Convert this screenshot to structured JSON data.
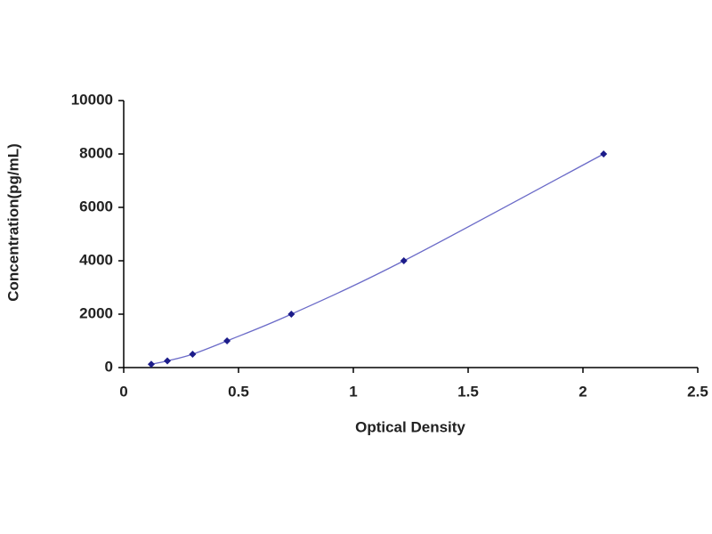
{
  "chart_data": {
    "type": "scatter",
    "x_label": "Optical Density",
    "y_label": "Concentration(pg/mL)",
    "series": [
      {
        "x": [
          0.12,
          0.19,
          0.3,
          0.45,
          0.73,
          1.22,
          2.09
        ],
        "values": [
          125,
          250,
          500,
          1000,
          2000,
          4000,
          8000
        ],
        "color": "#1c1c8a",
        "line_color": "#6b6bc8"
      }
    ],
    "connect": true,
    "grid": false,
    "xlim": [
      0,
      2.5
    ],
    "xticks": [
      0,
      0.5,
      1,
      1.5,
      2,
      2.5
    ],
    "ylim": [
      0,
      10000
    ],
    "yticks": [
      0,
      2000,
      4000,
      6000,
      8000,
      10000
    ]
  }
}
